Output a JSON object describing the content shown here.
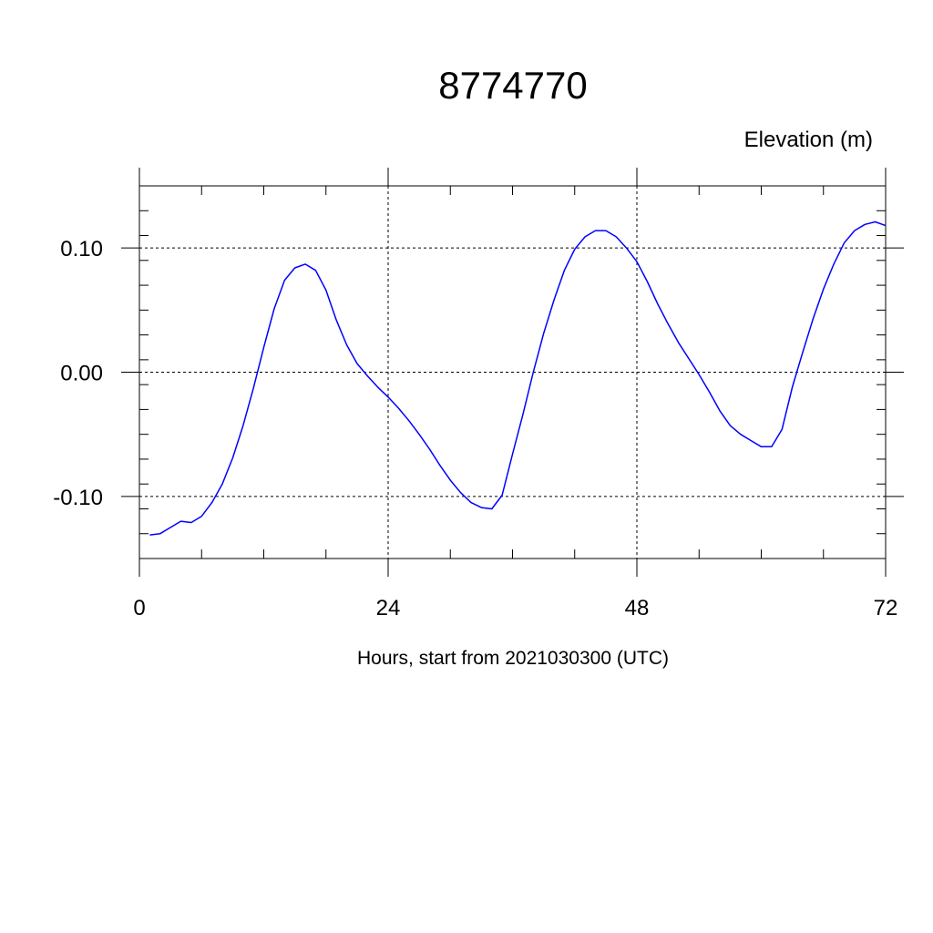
{
  "chart_data": {
    "type": "line",
    "title": "8774770",
    "ylabel": "Elevation (m)",
    "xlabel": "Hours, start from 2021030300 (UTC)",
    "xlim": [
      0,
      72
    ],
    "ylim": [
      -0.15,
      0.15
    ],
    "x_ticks": [
      0,
      24,
      48,
      72
    ],
    "x_tick_labels": [
      "0",
      "24",
      "48",
      "72"
    ],
    "y_ticks": [
      -0.1,
      0.0,
      0.1
    ],
    "y_tick_labels": [
      "-0.10",
      "0.00",
      "0.10"
    ],
    "grid": "dashed at major ticks",
    "legend": "none",
    "line_color": "#0000ff",
    "series": [
      {
        "x": [
          1,
          2,
          3,
          4,
          5,
          6,
          7,
          8,
          9,
          10,
          11,
          12,
          13,
          14,
          15,
          16,
          17,
          18,
          19,
          20,
          21,
          22,
          23,
          24,
          25,
          26,
          27,
          28,
          29,
          30,
          31,
          32,
          33,
          34,
          35,
          36,
          37,
          38,
          39,
          40,
          41,
          42,
          43,
          44,
          45,
          46,
          47,
          48,
          49,
          50,
          51,
          52,
          53,
          54,
          55,
          56,
          57,
          58,
          59,
          60,
          61,
          62,
          63,
          64,
          65,
          66,
          67,
          68,
          69,
          70,
          71,
          72
        ],
        "values": [
          -0.131,
          -0.13,
          -0.125,
          -0.12,
          -0.121,
          -0.116,
          -0.105,
          -0.09,
          -0.069,
          -0.043,
          -0.013,
          0.02,
          0.051,
          0.074,
          0.084,
          0.087,
          0.082,
          0.066,
          0.042,
          0.022,
          0.007,
          -0.003,
          -0.012,
          -0.02,
          -0.029,
          -0.039,
          -0.05,
          -0.062,
          -0.075,
          -0.087,
          -0.097,
          -0.105,
          -0.109,
          -0.11,
          -0.099,
          -0.066,
          -0.034,
          0.0,
          0.031,
          0.058,
          0.082,
          0.099,
          0.109,
          0.114,
          0.114,
          0.109,
          0.1,
          0.089,
          0.073,
          0.055,
          0.039,
          0.024,
          0.011,
          -0.002,
          -0.016,
          -0.031,
          -0.043,
          -0.05,
          -0.055,
          -0.06,
          -0.06,
          -0.046,
          -0.012,
          0.016,
          0.043,
          0.067,
          0.087,
          0.104,
          0.114,
          0.119,
          0.121,
          0.118
        ]
      }
    ]
  }
}
